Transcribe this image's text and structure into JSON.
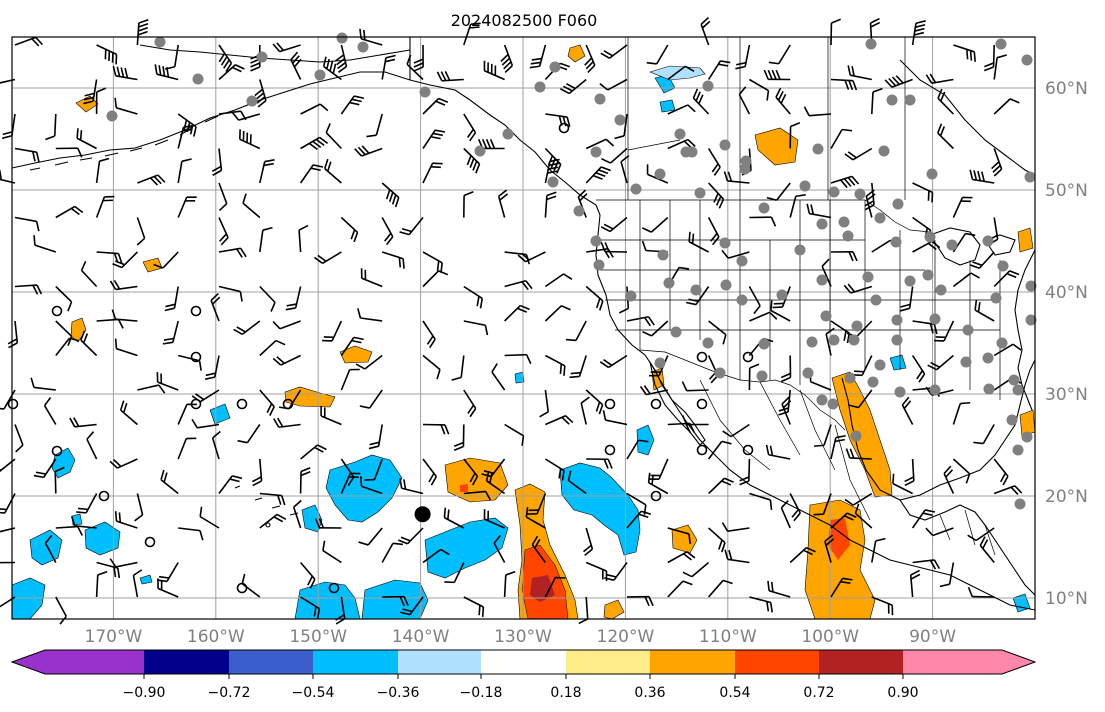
{
  "title": "2024082500 F060",
  "axes": {
    "lon_labels": [
      {
        "lon": -170,
        "text": "170°W"
      },
      {
        "lon": -160,
        "text": "160°W"
      },
      {
        "lon": -150,
        "text": "150°W"
      },
      {
        "lon": -140,
        "text": "140°W"
      },
      {
        "lon": -130,
        "text": "130°W"
      },
      {
        "lon": -120,
        "text": "120°W"
      },
      {
        "lon": -110,
        "text": "110°W"
      },
      {
        "lon": -100,
        "text": "100°W"
      },
      {
        "lon": -90,
        "text": "90°W"
      }
    ],
    "lat_labels": [
      {
        "lat": 60,
        "text": "60°N"
      },
      {
        "lat": 50,
        "text": "50°N"
      },
      {
        "lat": 40,
        "text": "40°N"
      },
      {
        "lat": 30,
        "text": "30°N"
      },
      {
        "lat": 20,
        "text": "20°N"
      },
      {
        "lat": 10,
        "text": "10°N"
      }
    ],
    "lon_range": [
      -180,
      -80
    ],
    "lat_range": [
      8,
      65
    ],
    "gridlines": true,
    "label_color": "#808080",
    "grid_color": "#a0a0a0"
  },
  "colorbar": {
    "colors": [
      "#9932cc",
      "#00008b",
      "#3a5fcd",
      "#00bfff",
      "#b0e2ff",
      "#ffffff",
      "#ffec8b",
      "#ffa500",
      "#ff4500",
      "#b22222",
      "#ff88aa"
    ],
    "tick_labels": [
      "−0.90",
      "−0.72",
      "−0.54",
      "−0.36",
      "−0.18",
      "0.18",
      "0.36",
      "0.54",
      "0.72",
      "0.90"
    ]
  },
  "colors": {
    "coast": "#000000",
    "station": "#808080",
    "barb": "#000000",
    "orange": "#ffa500",
    "red": "#ff4500",
    "dark_red": "#b22222",
    "sky_blue": "#00bfff",
    "light_blue": "#b0e2ff"
  },
  "markers": {
    "storm_center": {
      "lon": -140,
      "lat": 19
    }
  }
}
